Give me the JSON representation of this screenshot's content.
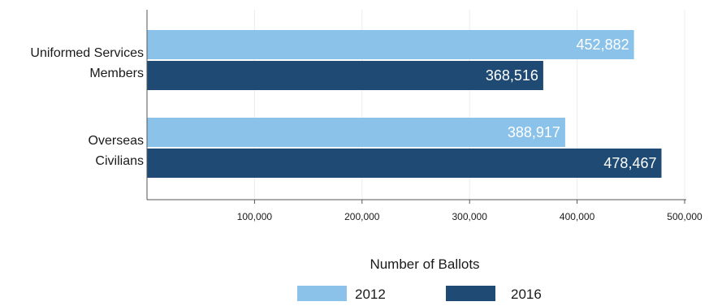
{
  "chart_data": {
    "type": "bar",
    "orientation": "horizontal",
    "categories": [
      [
        "Uniformed Services",
        "Members"
      ],
      [
        "Overseas",
        "Civilians"
      ]
    ],
    "series": [
      {
        "name": "2012",
        "color": "#8ac2ea",
        "values": [
          452882,
          388917
        ],
        "labels": [
          "452,882",
          "388,917"
        ]
      },
      {
        "name": "2016",
        "color": "#1e4a73",
        "values": [
          368516,
          478467
        ],
        "labels": [
          "368,516",
          "478,467"
        ]
      }
    ],
    "xlabel": "Number of Ballots",
    "xlim": [
      0,
      500000
    ],
    "xticks": [
      {
        "value": 100000,
        "label": "100,000"
      },
      {
        "value": 200000,
        "label": "200,000"
      },
      {
        "value": 300000,
        "label": "300,000"
      },
      {
        "value": 400000,
        "label": "400,000"
      },
      {
        "value": 500000,
        "label": "500,000"
      }
    ],
    "grid": true,
    "legend_position": "bottom"
  }
}
